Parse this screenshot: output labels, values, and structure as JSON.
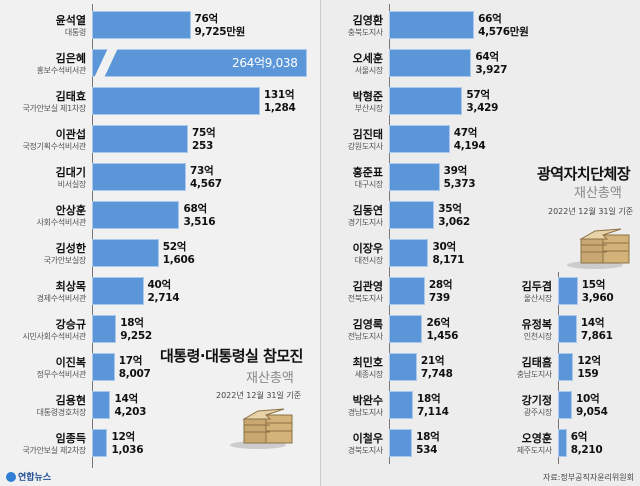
{
  "colors": {
    "bar": "#5b97d8",
    "bar_border": "#a9c8ec",
    "background": "#ededed"
  },
  "chart_data": [
    {
      "type": "bar",
      "orientation": "horizontal",
      "title": "대통령·대통령실 참모진",
      "subtitle": "재산총액",
      "date": "2022년 12월 31일 기준",
      "unit": "억",
      "rows": [
        {
          "name": "윤석열",
          "role": "대통령",
          "value": 76.9725,
          "label1": "76억",
          "label2": "9,725만원"
        },
        {
          "name": "김은혜",
          "role": "홍보수석비서관",
          "value": 264.9038,
          "label1": "264억",
          "label2": "9,038",
          "broken": true
        },
        {
          "name": "김태효",
          "role": "국가안보실 제1차장",
          "value": 131.1284,
          "label1": "131억",
          "label2": "1,284"
        },
        {
          "name": "이관섭",
          "role": "국정기획수석비서관",
          "value": 75.0253,
          "label1": "75억",
          "label2": "253"
        },
        {
          "name": "김대기",
          "role": "비서실장",
          "value": 73.4567,
          "label1": "73억",
          "label2": "4,567"
        },
        {
          "name": "안상훈",
          "role": "사회수석비서관",
          "value": 68.3516,
          "label1": "68억",
          "label2": "3,516"
        },
        {
          "name": "김성한",
          "role": "국가안보실장",
          "value": 52.1606,
          "label1": "52억",
          "label2": "1,606"
        },
        {
          "name": "최상목",
          "role": "경제수석비서관",
          "value": 40.2714,
          "label1": "40억",
          "label2": "2,714"
        },
        {
          "name": "강승규",
          "role": "시민사회수석비서관",
          "value": 18.9252,
          "label1": "18억",
          "label2": "9,252"
        },
        {
          "name": "이진복",
          "role": "정무수석비서관",
          "value": 17.8007,
          "label1": "17억",
          "label2": "8,007"
        },
        {
          "name": "김용현",
          "role": "대통령경호처장",
          "value": 14.4203,
          "label1": "14억",
          "label2": "4,203"
        },
        {
          "name": "임종득",
          "role": "국가안보실 제2차장",
          "value": 12.1036,
          "label1": "12억",
          "label2": "1,036"
        }
      ]
    },
    {
      "type": "bar",
      "orientation": "horizontal",
      "title": "광역자치단체장",
      "subtitle": "재산총액",
      "date": "2022년 12월 31일 기준",
      "unit": "억",
      "rows": [
        {
          "name": "김영환",
          "role": "충북도지사",
          "value": 66.4576,
          "label1": "66억",
          "label2": "4,576만원"
        },
        {
          "name": "오세훈",
          "role": "서울시장",
          "value": 64.3927,
          "label1": "64억",
          "label2": "3,927"
        },
        {
          "name": "박형준",
          "role": "부산시장",
          "value": 57.3429,
          "label1": "57억",
          "label2": "3,429"
        },
        {
          "name": "김진태",
          "role": "강원도지사",
          "value": 47.4194,
          "label1": "47억",
          "label2": "4,194"
        },
        {
          "name": "홍준표",
          "role": "대구시장",
          "value": 39.5373,
          "label1": "39억",
          "label2": "5,373"
        },
        {
          "name": "김동연",
          "role": "경기도지사",
          "value": 35.3062,
          "label1": "35억",
          "label2": "3,062"
        },
        {
          "name": "이장우",
          "role": "대전시장",
          "value": 30.8171,
          "label1": "30억",
          "label2": "8,171"
        },
        {
          "name": "김관영",
          "role": "전북도지사",
          "value": 28.0739,
          "label1": "28억",
          "label2": "739"
        },
        {
          "name": "김영록",
          "role": "전남도지사",
          "value": 26.1456,
          "label1": "26억",
          "label2": "1,456"
        },
        {
          "name": "최민호",
          "role": "세종시장",
          "value": 21.7748,
          "label1": "21억",
          "label2": "7,748"
        },
        {
          "name": "박완수",
          "role": "경남도지사",
          "value": 18.7114,
          "label1": "18억",
          "label2": "7,114"
        },
        {
          "name": "이철우",
          "role": "경북도지사",
          "value": 18.0534,
          "label1": "18억",
          "label2": "534"
        },
        {
          "name": "김두겸",
          "role": "울산시장",
          "value": 15.396,
          "label1": "15억",
          "label2": "3,960"
        },
        {
          "name": "유정복",
          "role": "인천시장",
          "value": 14.7861,
          "label1": "14억",
          "label2": "7,861"
        },
        {
          "name": "김태흠",
          "role": "충남도지사",
          "value": 12.0159,
          "label1": "12억",
          "label2": "159"
        },
        {
          "name": "강기정",
          "role": "광주시장",
          "value": 10.9054,
          "label1": "10억",
          "label2": "9,054"
        },
        {
          "name": "오영훈",
          "role": "제주도지사",
          "value": 6.821,
          "label1": "6억",
          "label2": "8,210"
        }
      ]
    }
  ],
  "footer": {
    "source": "자료:정부공직자윤리위원회",
    "logo": "연합뉴스"
  }
}
